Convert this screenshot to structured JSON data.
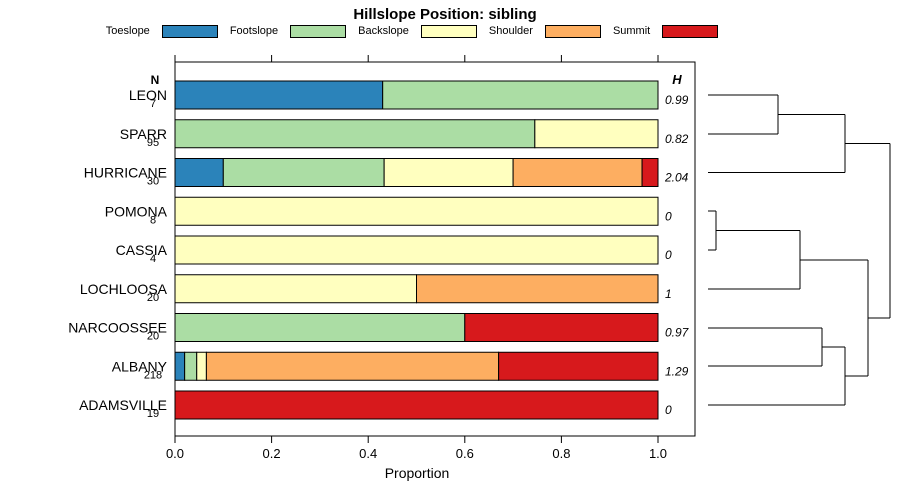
{
  "title": "Hillslope Position: sibling",
  "legend": {
    "items": [
      {
        "label": "Toeslope",
        "color": "#2B83BA"
      },
      {
        "label": "Footslope",
        "color": "#ABDDA4"
      },
      {
        "label": "Backslope",
        "color": "#FFFFBF"
      },
      {
        "label": "Shoulder",
        "color": "#FDAE61"
      },
      {
        "label": "Summit",
        "color": "#D7191C"
      }
    ]
  },
  "columns": {
    "n_header": "N",
    "h_header": "H"
  },
  "axis": {
    "xlabel": "Proportion",
    "ticks": [
      0.0,
      0.2,
      0.4,
      0.6,
      0.8,
      1.0
    ],
    "tick_labels": [
      "0.0",
      "0.2",
      "0.4",
      "0.6",
      "0.8",
      "1.0"
    ]
  },
  "chart_data": {
    "type": "bar",
    "stacked": true,
    "orientation": "horizontal",
    "title": "Hillslope Position: sibling",
    "xlabel": "Proportion",
    "xlim": [
      0,
      1
    ],
    "categories": [
      "Toeslope",
      "Footslope",
      "Backslope",
      "Shoulder",
      "Summit"
    ],
    "colors": [
      "#2B83BA",
      "#ABDDA4",
      "#FFFFBF",
      "#FDAE61",
      "#D7191C"
    ],
    "rows": [
      {
        "name": "LEON",
        "n": 7,
        "h": "0.99",
        "values": [
          0.43,
          0.57,
          0,
          0,
          0
        ]
      },
      {
        "name": "SPARR",
        "n": 95,
        "h": "0.82",
        "values": [
          0,
          0.745,
          0.255,
          0,
          0
        ]
      },
      {
        "name": "HURRICANE",
        "n": 30,
        "h": "2.04",
        "values": [
          0.1,
          0.333,
          0.267,
          0.267,
          0.033
        ]
      },
      {
        "name": "POMONA",
        "n": 8,
        "h": "0",
        "values": [
          0,
          0,
          1,
          0,
          0
        ]
      },
      {
        "name": "CASSIA",
        "n": 4,
        "h": "0",
        "values": [
          0,
          0,
          1,
          0,
          0
        ]
      },
      {
        "name": "LOCHLOOSA",
        "n": 20,
        "h": "1",
        "values": [
          0,
          0,
          0.5,
          0.5,
          0
        ]
      },
      {
        "name": "NARCOOSSEE",
        "n": 20,
        "h": "0.97",
        "values": [
          0,
          0.6,
          0,
          0,
          0.4
        ]
      },
      {
        "name": "ALBANY",
        "n": 218,
        "h": "1.29",
        "values": [
          0.02,
          0.025,
          0.02,
          0.605,
          0.33
        ]
      },
      {
        "name": "ADAMSVILLE",
        "n": 19,
        "h": "0",
        "values": [
          0,
          0,
          0,
          0,
          1
        ]
      }
    ],
    "dendrogram": {
      "segments": [
        [
          708,
          95,
          778,
          95
        ],
        [
          708,
          134,
          778,
          134
        ],
        [
          778,
          95,
          778,
          134
        ],
        [
          778,
          114.5,
          845,
          114.5
        ],
        [
          708,
          172.5,
          845,
          172.5
        ],
        [
          845,
          114.5,
          845,
          172.5
        ],
        [
          845,
          143.5,
          890,
          143.5
        ],
        [
          708,
          211,
          716,
          211
        ],
        [
          708,
          250,
          716,
          250
        ],
        [
          716,
          211,
          716,
          250
        ],
        [
          716,
          230.5,
          800,
          230.5
        ],
        [
          708,
          289,
          800,
          289
        ],
        [
          800,
          230.5,
          800,
          289
        ],
        [
          800,
          260,
          868,
          260
        ],
        [
          708,
          328,
          822,
          328
        ],
        [
          708,
          366,
          822,
          366
        ],
        [
          822,
          328,
          822,
          366
        ],
        [
          822,
          347,
          845,
          347
        ],
        [
          708,
          405,
          845,
          405
        ],
        [
          845,
          347,
          845,
          405
        ],
        [
          845,
          376,
          868,
          376
        ],
        [
          868,
          260,
          868,
          376
        ],
        [
          868,
          318,
          890,
          318
        ],
        [
          890,
          143.5,
          890,
          318
        ]
      ]
    }
  }
}
